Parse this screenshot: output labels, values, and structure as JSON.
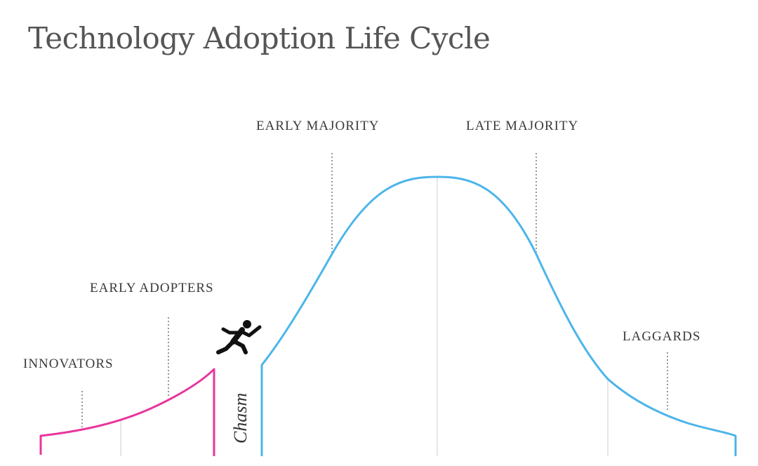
{
  "title": "Technology Adoption Life Cycle",
  "labels": {
    "innovators": "INNOVATORS",
    "early_adopters": "EARLY ADOPTERS",
    "early_majority": "EARLY MAJORITY",
    "late_majority": "LATE MAJORITY",
    "laggards": "LAGGARDS",
    "chasm": "Chasm"
  },
  "colors": {
    "early_curve": "#e8359d",
    "main_curve": "#4cb5ea",
    "dotted_line": "#555555",
    "grid_line": "#dddddd",
    "text": "#3a3a3a",
    "runner": "#111111"
  },
  "icons": {
    "runner": "running-figure-icon"
  }
}
